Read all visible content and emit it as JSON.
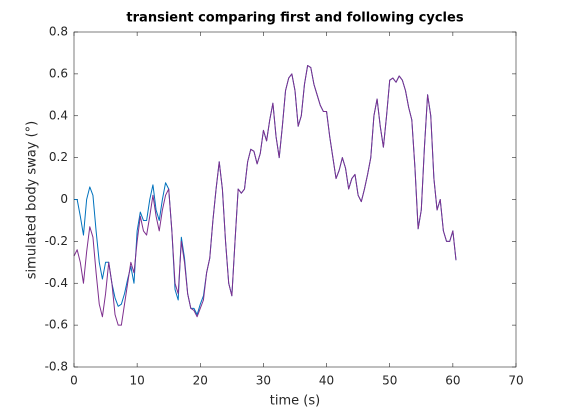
{
  "chart_data": {
    "type": "line",
    "title": "transient comparing first and following cycles",
    "xlabel": "time (s)",
    "ylabel": "simulated body sway (°)",
    "x": [
      0,
      0.5,
      1,
      1.5,
      2,
      2.5,
      3,
      3.5,
      4,
      4.5,
      5,
      5.5,
      6,
      6.5,
      7,
      7.5,
      8,
      8.5,
      9,
      9.5,
      10,
      10.5,
      11,
      11.5,
      12,
      12.5,
      13,
      13.5,
      14,
      14.5,
      15,
      15.5,
      16,
      16.5,
      17,
      17.5,
      18,
      18.5,
      19,
      19.5,
      20,
      20.5,
      21,
      21.5,
      22,
      22.5,
      23,
      23.5,
      24,
      24.5,
      25,
      25.5,
      26,
      26.5,
      27,
      27.5,
      28,
      28.5,
      29,
      29.5,
      30,
      30.5,
      31,
      31.5,
      32,
      32.5,
      33,
      33.5,
      34,
      34.5,
      35,
      35.5,
      36,
      36.5,
      37,
      37.5,
      38,
      38.5,
      39,
      39.5,
      40,
      40.5,
      41,
      41.5,
      42,
      42.5,
      43,
      43.5,
      44,
      44.5,
      45,
      45.5,
      46,
      46.5,
      47,
      47.5,
      48,
      48.5,
      49,
      49.5,
      50,
      50.5,
      51,
      51.5,
      52,
      52.5,
      53,
      53.5,
      54,
      54.5,
      55,
      55.5,
      56,
      56.5,
      57,
      57.5,
      58,
      58.5,
      59,
      59.5,
      60,
      60.5
    ],
    "series": [
      {
        "color": "#0072BD",
        "values": [
          0.0,
          0.0,
          -0.08,
          -0.17,
          0.0,
          0.06,
          0.02,
          -0.15,
          -0.3,
          -0.38,
          -0.3,
          -0.3,
          -0.4,
          -0.47,
          -0.51,
          -0.5,
          -0.45,
          -0.38,
          -0.32,
          -0.4,
          -0.15,
          -0.06,
          -0.1,
          -0.1,
          0.0,
          0.07,
          -0.05,
          -0.1,
          0.0,
          0.08,
          0.05,
          -0.15,
          -0.43,
          -0.48,
          -0.18,
          -0.28,
          -0.45,
          -0.52,
          -0.52,
          -0.55,
          -0.5,
          -0.46,
          -0.35,
          -0.28,
          -0.1,
          0.05,
          0.18,
          0.05,
          -0.2,
          -0.4,
          -0.46,
          -0.2,
          0.05,
          0.03,
          0.05,
          0.18,
          0.24,
          0.23,
          0.17,
          0.22,
          0.33,
          0.28,
          0.38,
          0.46,
          0.3,
          0.2,
          0.35,
          0.52,
          0.58,
          0.6,
          0.52,
          0.35,
          0.4,
          0.55,
          0.64,
          0.63,
          0.55,
          0.5,
          0.45,
          0.42,
          0.42,
          0.3,
          0.2,
          0.1,
          0.14,
          0.2,
          0.15,
          0.05,
          0.1,
          0.12,
          0.02,
          -0.01,
          0.05,
          0.12,
          0.2,
          0.4,
          0.48,
          0.35,
          0.25,
          0.4,
          0.57,
          0.58,
          0.56,
          0.59,
          0.57,
          0.52,
          0.44,
          0.38,
          0.15,
          -0.14,
          -0.05,
          0.25,
          0.5,
          0.4,
          0.1,
          -0.05,
          0.0,
          -0.15,
          -0.2,
          -0.2,
          -0.15,
          -0.29
        ]
      },
      {
        "color": "#7E2F8E",
        "values": [
          -0.27,
          -0.24,
          -0.3,
          -0.4,
          -0.25,
          -0.13,
          -0.18,
          -0.35,
          -0.5,
          -0.56,
          -0.45,
          -0.3,
          -0.4,
          -0.55,
          -0.6,
          -0.6,
          -0.5,
          -0.4,
          -0.3,
          -0.35,
          -0.2,
          -0.08,
          -0.15,
          -0.17,
          -0.08,
          0.02,
          -0.08,
          -0.15,
          -0.05,
          0.02,
          0.05,
          -0.15,
          -0.4,
          -0.45,
          -0.2,
          -0.3,
          -0.45,
          -0.52,
          -0.53,
          -0.56,
          -0.52,
          -0.48,
          -0.35,
          -0.28,
          -0.1,
          0.05,
          0.18,
          0.05,
          -0.2,
          -0.4,
          -0.46,
          -0.2,
          0.05,
          0.03,
          0.05,
          0.18,
          0.24,
          0.23,
          0.17,
          0.22,
          0.33,
          0.28,
          0.38,
          0.46,
          0.3,
          0.2,
          0.35,
          0.52,
          0.58,
          0.6,
          0.52,
          0.35,
          0.4,
          0.55,
          0.64,
          0.63,
          0.55,
          0.5,
          0.45,
          0.42,
          0.42,
          0.3,
          0.2,
          0.1,
          0.14,
          0.2,
          0.15,
          0.05,
          0.1,
          0.12,
          0.02,
          -0.01,
          0.05,
          0.12,
          0.2,
          0.4,
          0.48,
          0.35,
          0.25,
          0.4,
          0.57,
          0.58,
          0.56,
          0.59,
          0.57,
          0.52,
          0.44,
          0.38,
          0.15,
          -0.14,
          -0.05,
          0.25,
          0.5,
          0.4,
          0.1,
          -0.05,
          0.0,
          -0.15,
          -0.2,
          -0.2,
          -0.15,
          -0.29
        ]
      }
    ],
    "xlim": [
      0,
      70
    ],
    "xticks": [
      0,
      10,
      20,
      30,
      40,
      50,
      60,
      70
    ],
    "ylim": [
      -0.8,
      0.8
    ],
    "yticks": [
      -0.8,
      -0.6,
      -0.4,
      -0.2,
      0,
      0.2,
      0.4,
      0.6,
      0.8
    ],
    "grid": false
  }
}
